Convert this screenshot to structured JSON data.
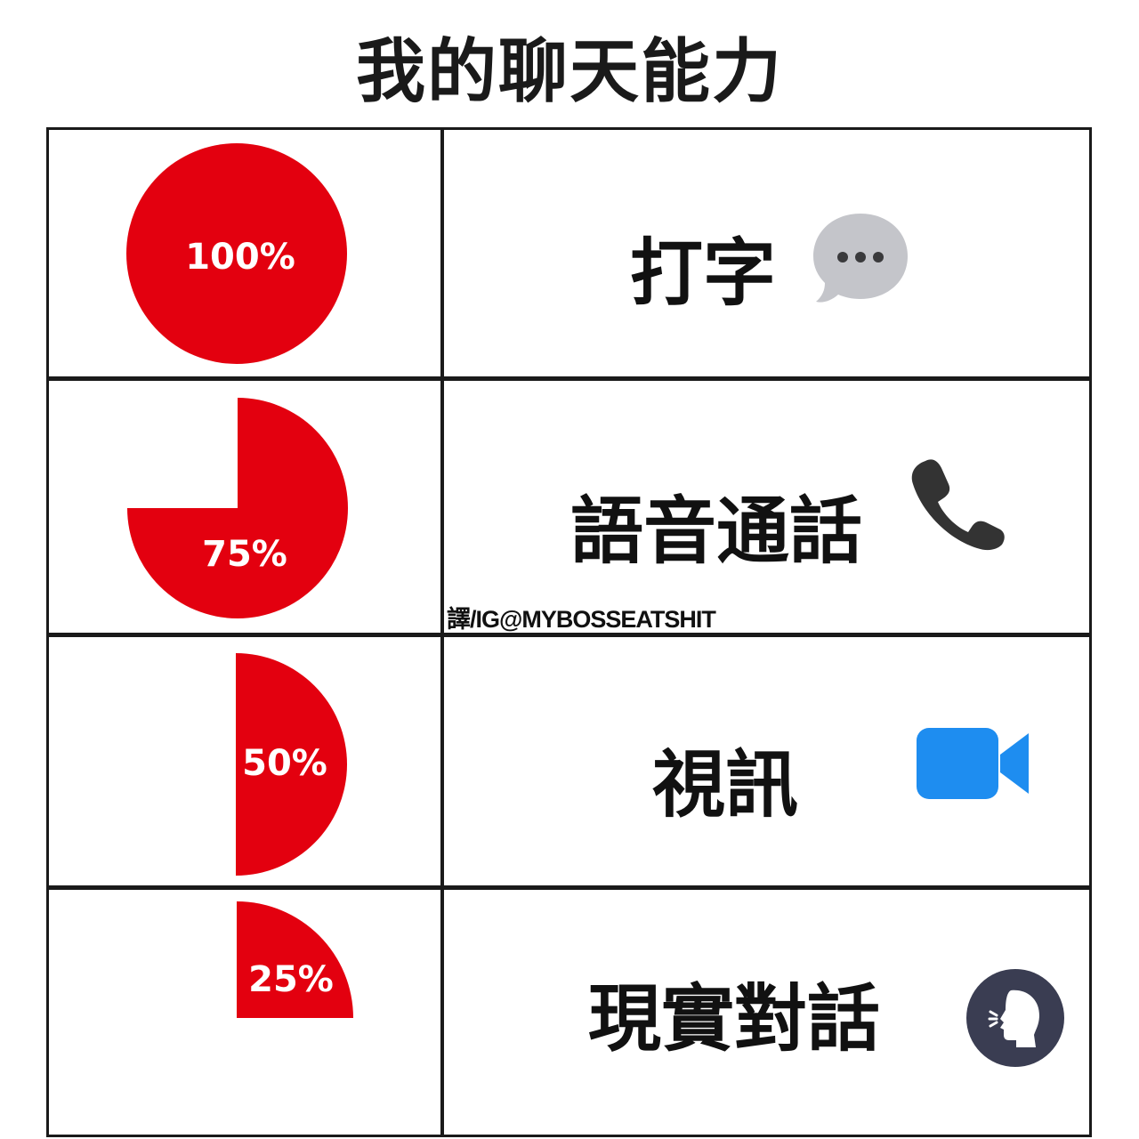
{
  "title": "我的聊天能力",
  "credit": "譯/IG@MYBOSSEATSHIT",
  "colors": {
    "pie_red": "#e3000f",
    "grid_line": "#1a1a1a",
    "bubble_gray": "#c4c5ca",
    "video_blue": "#1e8df0",
    "speak_navy": "#3a3d52"
  },
  "rows": [
    {
      "percent_label": "100%",
      "percent": 100,
      "activity": "打字",
      "icon": "chat-bubble-icon"
    },
    {
      "percent_label": "75%",
      "percent": 75,
      "activity": "語音通話",
      "icon": "phone-icon"
    },
    {
      "percent_label": "50%",
      "percent": 50,
      "activity": "視訊",
      "icon": "video-camera-icon"
    },
    {
      "percent_label": "25%",
      "percent": 25,
      "activity": "現實對話",
      "icon": "speaking-head-icon"
    }
  ]
}
